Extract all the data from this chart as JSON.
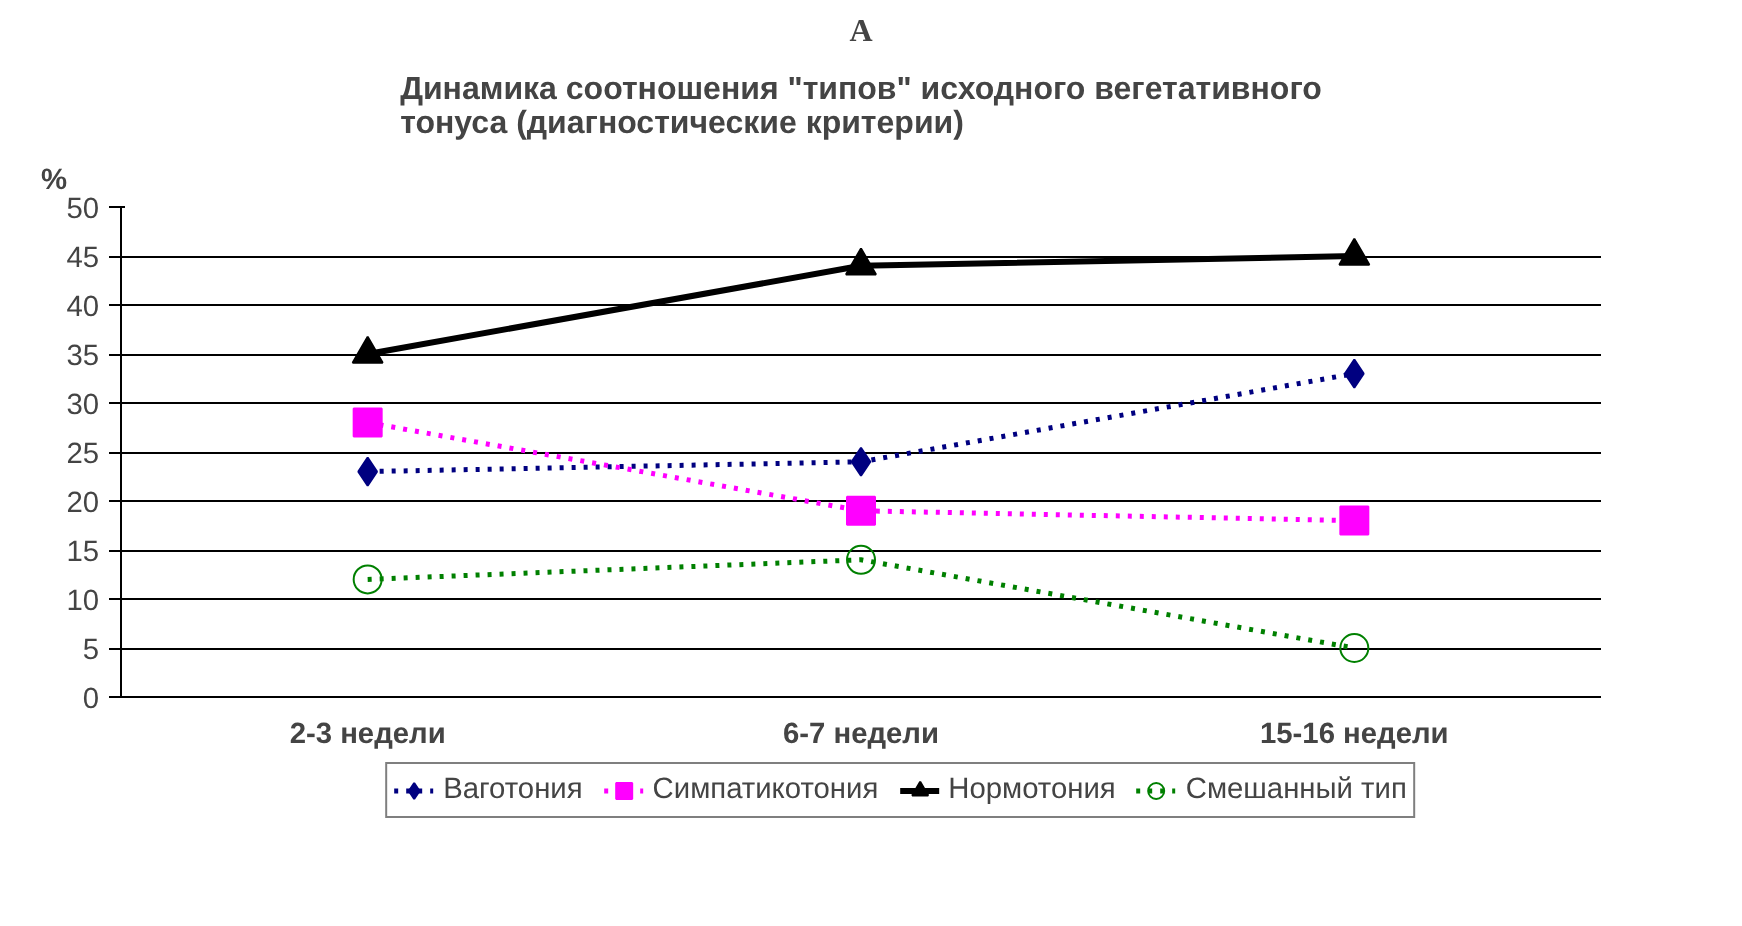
{
  "chart_data": {
    "type": "line",
    "title": "Динамика соотношения \"типов\" исходного вегетативного\nтонуса (диагностические критерии)",
    "ylabel": "%",
    "annotations": [
      "A"
    ],
    "categories": [
      "2-3 недели",
      "6-7 недели",
      "15-16 недели"
    ],
    "series": [
      {
        "name": "Ваготония",
        "color": "#000080",
        "values": [
          23,
          24,
          33
        ],
        "marker": "diamond",
        "line_style": "dotted"
      },
      {
        "name": "Симпатикотония",
        "color": "#ff00ff",
        "values": [
          28,
          19,
          18
        ],
        "marker": "square",
        "line_style": "dotted"
      },
      {
        "name": "Нормотония",
        "color": "#000000",
        "values": [
          35,
          44,
          45
        ],
        "marker": "triangle",
        "line_style": "solid"
      },
      {
        "name": "Смешанный тип",
        "color": "#008000",
        "values": [
          12,
          14,
          5
        ],
        "marker": "circle",
        "line_style": "dotted"
      }
    ],
    "ylim": [
      0,
      50
    ],
    "yticks": [
      0,
      5,
      10,
      15,
      20,
      25,
      30,
      35,
      40,
      45,
      50
    ],
    "grid": "y",
    "legend": "bottom"
  }
}
